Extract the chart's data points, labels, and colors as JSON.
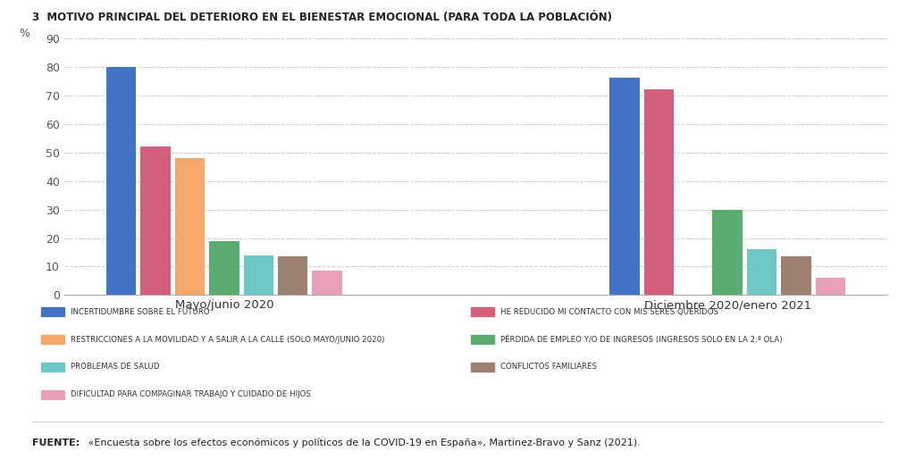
{
  "title": "3  MOTIVO PRINCIPAL DEL DETERIORO EN EL BIENESTAR EMOCIONAL (PARA TODA LA POBLACIÓN)",
  "ylabel": "%",
  "ylim": [
    0,
    90
  ],
  "yticks": [
    0,
    10,
    20,
    30,
    40,
    50,
    60,
    70,
    80,
    90
  ],
  "group_labels": [
    "Mayo/junio 2020",
    "Diciembre 2020/enero 2021"
  ],
  "categories": [
    "incertidumbre",
    "contacto",
    "restricciones",
    "empleo",
    "salud",
    "conflictos",
    "dificultad"
  ],
  "values_group1": [
    80,
    52,
    48,
    19,
    14,
    13.5,
    8.5
  ],
  "values_group2": [
    76,
    72,
    null,
    30,
    16,
    13.5,
    6
  ],
  "colors": {
    "incertidumbre": "#4472C4",
    "contacto": "#D45F7A",
    "restricciones": "#F5A86A",
    "empleo": "#5BAD6F",
    "salud": "#6EC6C6",
    "conflictos": "#9E8070",
    "dificultad": "#E8A0B8"
  },
  "legend_col1": [
    {
      "label": "INCERTIDUMBRE SOBRE EL FUTURO",
      "color": "#4472C4"
    },
    {
      "label": "RESTRICCIONES A LA MOVILIDAD Y A SALIR A LA CALLE (SOLO MAYO/JUNIO 2020)",
      "color": "#F5A86A"
    },
    {
      "label": "PROBLEMAS DE SALUD",
      "color": "#6EC6C6"
    },
    {
      "label": "DIFICULTAD PARA COMPAGINAR TRABAJO Y CUIDADO DE HIJOS",
      "color": "#E8A0B8"
    }
  ],
  "legend_col2": [
    {
      "label": "HE REDUCIDO MI CONTACTO CON MIS SERES QUERIDOS",
      "color": "#D45F7A"
    },
    {
      "label": "PÉRDIDA DE EMPLEO Y/O DE INGRESOS (INGRESOS SOLO EN LA 2.ª OLA)",
      "color": "#5BAD6F"
    },
    {
      "label": "CONFLICTOS FAMILIARES",
      "color": "#9E8070"
    }
  ],
  "fuente_bold": "FUENTE:",
  "fuente_rest": " «Encuesta sobre los efectos económicos y políticos de la COVID-19 en España», Martinez-Bravo y Sanz (2021).",
  "background_color": "#FFFFFF",
  "grid_color": "#CCCCCC"
}
